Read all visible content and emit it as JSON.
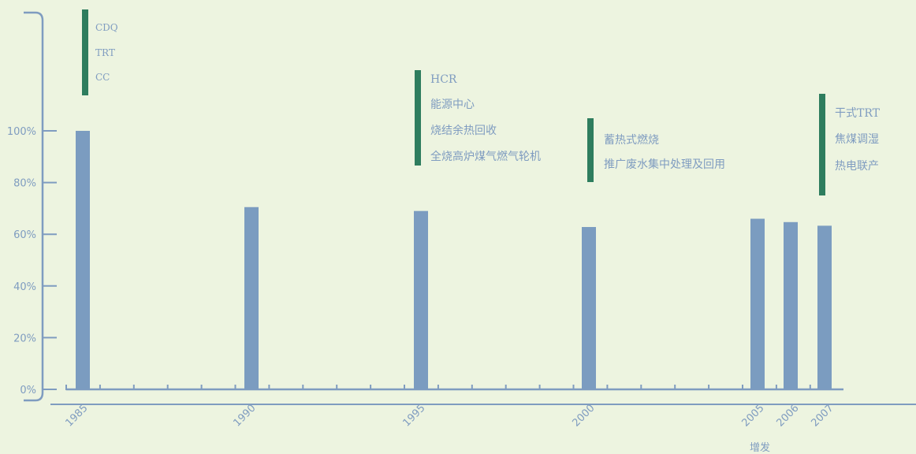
{
  "chart_data": {
    "type": "bar",
    "categories": [
      "1985",
      "1990",
      "1995",
      "2000",
      "2005",
      "2006",
      "2007"
    ],
    "values": [
      100,
      70.5,
      69,
      62.8,
      66,
      64.7,
      63.3
    ],
    "ylim": [
      0,
      100
    ],
    "y_ticks": [
      "0%",
      "20%",
      "40%",
      "60%",
      "80%",
      "100%"
    ],
    "y_tick_values": [
      0,
      20,
      40,
      60,
      80,
      100
    ],
    "extra_label": "增发",
    "grid": false,
    "annotations": [
      {
        "year": "1985",
        "items": [
          "CDQ",
          "TRT",
          "CC"
        ]
      },
      {
        "year": "1995",
        "items": [
          "HCR",
          "能源中心",
          "烧结余热回收",
          "全烧高炉煤气燃气轮机"
        ]
      },
      {
        "year": "2000",
        "items": [
          "蓄热式燃烧",
          "推广废水集中处理及回用"
        ]
      },
      {
        "year": "2007",
        "items": [
          "干式TRT",
          "焦煤调湿",
          "热电联产"
        ]
      }
    ],
    "colors": {
      "bar": "#7b9cc0",
      "annotation_bar": "#2e7d5e",
      "axis": "#7f9cc0",
      "text": "#7f9cc0",
      "background": "#edf4e0"
    }
  }
}
